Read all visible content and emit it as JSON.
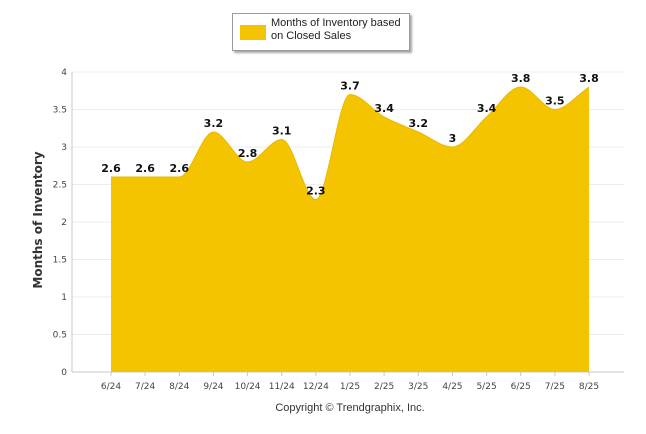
{
  "chart_data": {
    "type": "area",
    "title": "",
    "xlabel": "",
    "ylabel": "Months of Inventory",
    "categories": [
      "6/24",
      "7/24",
      "8/24",
      "9/24",
      "10/24",
      "11/24",
      "12/24",
      "1/25",
      "2/25",
      "3/25",
      "4/25",
      "5/25",
      "6/25",
      "7/25",
      "8/25"
    ],
    "series": [
      {
        "name": "Months of Inventory based on Closed Sales",
        "values": [
          2.6,
          2.6,
          2.6,
          3.2,
          2.8,
          3.1,
          2.3,
          3.7,
          3.4,
          3.2,
          3,
          3.4,
          3.8,
          3.5,
          3.8
        ],
        "color": "#F5C400"
      }
    ],
    "ylim": [
      0,
      4
    ],
    "yticks": [
      "0",
      "0.5",
      "1",
      "1.5",
      "2",
      "2.5",
      "3",
      "3.5",
      "4"
    ],
    "grid": true,
    "legend_position": "top-center"
  },
  "legend": {
    "label": "Months of Inventory based on Closed Sales"
  },
  "footer": {
    "copyright": "Copyright © Trendgraphix, Inc."
  }
}
